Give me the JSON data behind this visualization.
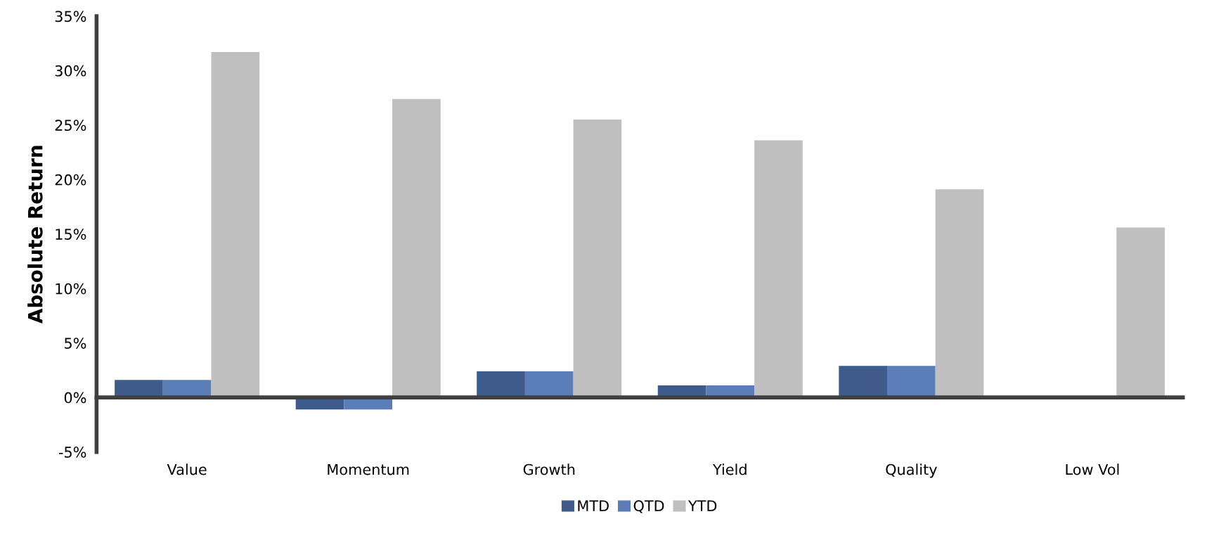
{
  "chart_data": {
    "type": "bar",
    "ylabel": "Absolute Return",
    "categories": [
      "Value",
      "Momentum",
      "Growth",
      "Yield",
      "Quality",
      "Low Vol"
    ],
    "series": [
      {
        "name": "MTD",
        "color": "#3f5b8c",
        "values": [
          1.6,
          -1.1,
          2.4,
          1.1,
          2.9,
          null
        ]
      },
      {
        "name": "QTD",
        "color": "#5b7db8",
        "values": [
          1.6,
          -1.1,
          2.4,
          1.1,
          2.9,
          null
        ]
      },
      {
        "name": "YTD",
        "color": "#bfbfbf",
        "values": [
          31.7,
          27.4,
          25.5,
          23.6,
          19.1,
          15.6
        ]
      }
    ],
    "ylim": [
      -5,
      35
    ],
    "yticks": [
      {
        "value": -5,
        "label": "-5%"
      },
      {
        "value": 0,
        "label": "0%"
      },
      {
        "value": 5,
        "label": "5%"
      },
      {
        "value": 10,
        "label": "10%"
      },
      {
        "value": 15,
        "label": "15%"
      },
      {
        "value": 20,
        "label": "20%"
      },
      {
        "value": 25,
        "label": "25%"
      },
      {
        "value": 30,
        "label": "30%"
      },
      {
        "value": 35,
        "label": "35%"
      }
    ],
    "legend": "bottom"
  }
}
